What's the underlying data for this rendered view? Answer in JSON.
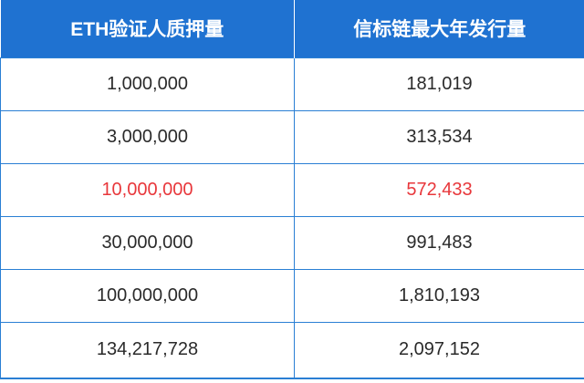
{
  "table": {
    "headers": [
      "ETH验证人质押量",
      "信标链最大年发行量"
    ],
    "rows": [
      {
        "stake": "1,000,000",
        "issuance": "181,019",
        "highlight": false
      },
      {
        "stake": "3,000,000",
        "issuance": "313,534",
        "highlight": false
      },
      {
        "stake": "10,000,000",
        "issuance": "572,433",
        "highlight": true
      },
      {
        "stake": "30,000,000",
        "issuance": "991,483",
        "highlight": false
      },
      {
        "stake": "100,000,000",
        "issuance": "1,810,193",
        "highlight": false
      },
      {
        "stake": "134,217,728",
        "issuance": "2,097,152",
        "highlight": false
      }
    ]
  },
  "colors": {
    "header_bg": "#1f72d1",
    "border": "#2a7fd4",
    "highlight_text": "#e8373b",
    "body_text": "#2a2a2a"
  }
}
